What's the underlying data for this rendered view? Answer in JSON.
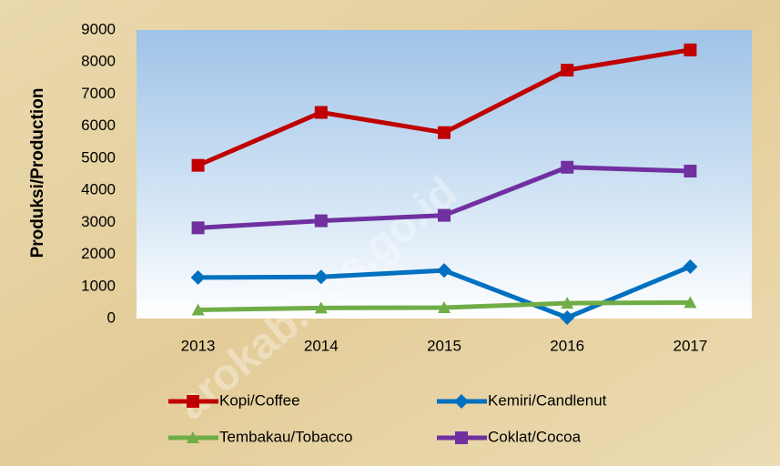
{
  "chart_data": {
    "type": "line",
    "y_label": "Produksi/Production",
    "watermark": "arokab.bps.go.id",
    "categories": [
      "2013",
      "2014",
      "2015",
      "2016",
      "2017"
    ],
    "series": [
      {
        "name": "Kopi/Coffee",
        "color": "#c00000",
        "marker": "square",
        "values": [
          4780,
          6430,
          5800,
          7750,
          8380
        ]
      },
      {
        "name": "Kemiri/Candlenut",
        "color": "#0070c0",
        "marker": "diamond",
        "values": [
          1280,
          1300,
          1500,
          30,
          1620
        ]
      },
      {
        "name": "Tembakau/Tobacco",
        "color": "#70ad47",
        "marker": "triangle",
        "values": [
          270,
          330,
          340,
          480,
          500
        ]
      },
      {
        "name": "Coklat/Cocoa",
        "color": "#7030a0",
        "marker": "square",
        "values": [
          2830,
          3050,
          3220,
          4720,
          4600
        ]
      }
    ],
    "ylim": [
      0,
      9000
    ],
    "yticks": [
      0,
      1000,
      2000,
      3000,
      4000,
      5000,
      6000,
      7000,
      8000,
      9000
    ],
    "grid": false,
    "legend": "bottom"
  }
}
